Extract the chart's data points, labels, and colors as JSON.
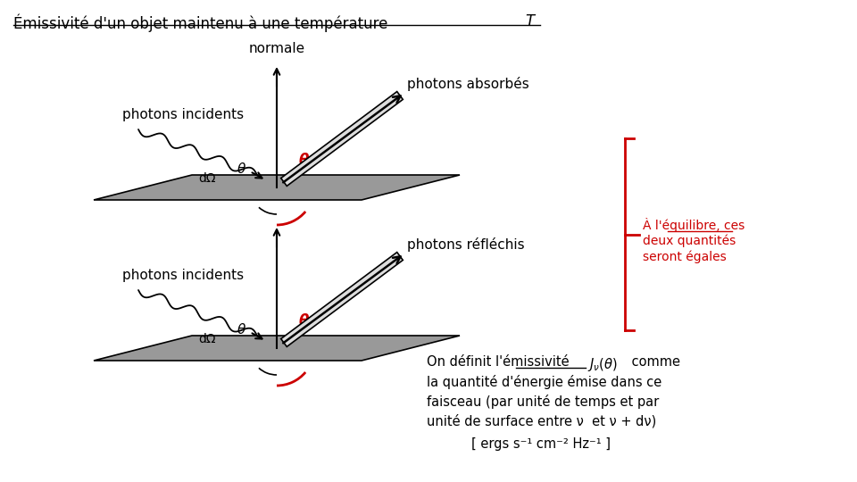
{
  "title_main": "Émissivité d'un objet maintenu à une température ",
  "title_T": "T",
  "bg_color": "#ffffff",
  "black_color": "#000000",
  "red_color": "#cc0000",
  "plate_color": "#999999",
  "tube_color": "#dddddd",
  "label_normale": "normale",
  "label_incidents": "photons incidents",
  "label_absorbes": "photons absorbés",
  "label_reflechis": "photons réfléchis",
  "label_dOmega": "dΩ",
  "label_theta": "θ",
  "equilibre_lines": [
    "À l'équilibre, ces",
    "deux quantités",
    "seront égales"
  ],
  "equilibre_underline_word": "équilibre",
  "bottom_line1a": "On définit l'émissivité",
  "bottom_line1b": " comme",
  "bottom_line2": "la quantité d'énergie émise dans ce",
  "bottom_line3": "faisceau (par unité de temps et par",
  "bottom_line4": "unité de surface entre ν  et ν + dν)",
  "bottom_line5": "[ ergs s⁻¹ cm⁻² Hz⁻¹ ]"
}
